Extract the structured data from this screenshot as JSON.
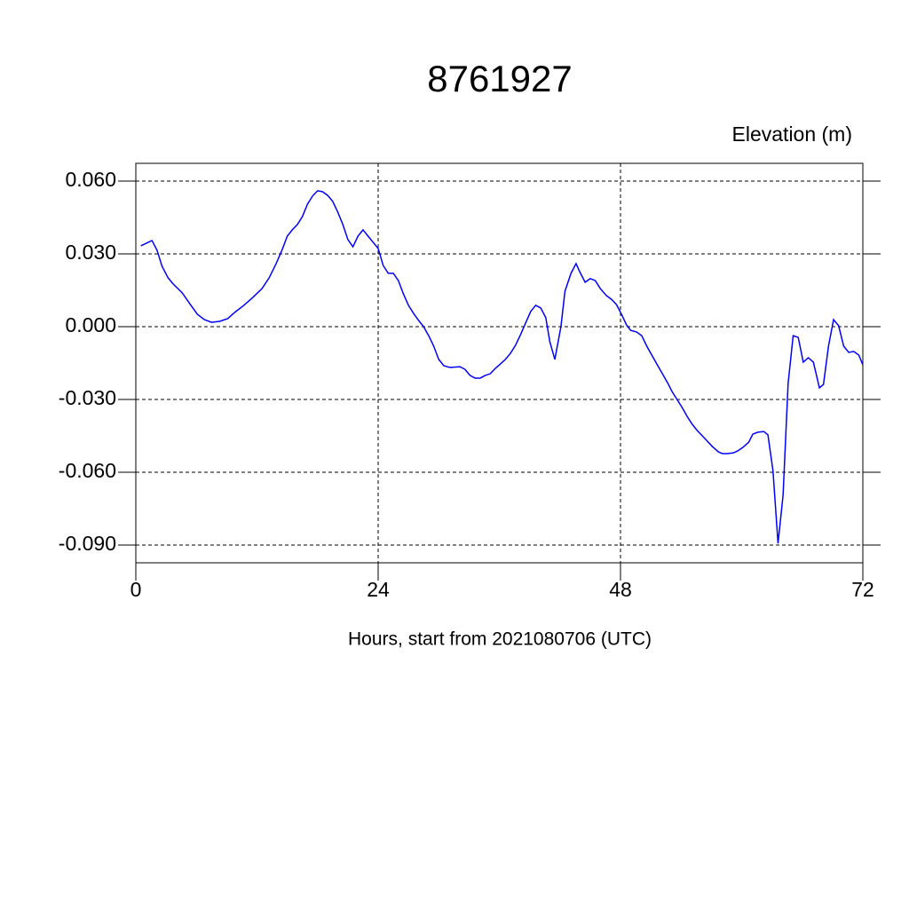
{
  "chart_data": {
    "type": "line",
    "title": "8761927",
    "ylabel": "Elevation (m)",
    "xlabel": "Hours, start from 2021080706 (UTC)",
    "xlim": [
      0,
      72
    ],
    "xticks": [
      0,
      24,
      48,
      72
    ],
    "ylim": [
      -0.0973,
      0.0673
    ],
    "yticks": [
      {
        "value": -0.09,
        "label": "-0.090"
      },
      {
        "value": -0.06,
        "label": "-0.060"
      },
      {
        "value": -0.03,
        "label": "-0.030"
      },
      {
        "value": 0,
        "label": "0.000"
      },
      {
        "value": 0.03,
        "label": "0.030"
      },
      {
        "value": 0.06,
        "label": "0.060"
      }
    ],
    "grid": true,
    "series": [
      {
        "color": "#0000ff",
        "x": [
          0.5,
          1.6,
          2.1,
          2.6,
          3.2,
          3.7,
          4.6,
          5.4,
          6.1,
          6.8,
          7.5,
          8.3,
          9.1,
          9.8,
          10.7,
          11.6,
          12.5,
          13.2,
          13.9,
          14.5,
          15.0,
          15.5,
          16.0,
          16.5,
          17.0,
          17.5,
          18.0,
          18.5,
          19.0,
          19.5,
          20.0,
          20.5,
          21.0,
          21.5,
          22.0,
          22.5,
          23.0,
          23.5,
          24.0,
          24.5,
          25.0,
          25.5,
          26.0,
          26.5,
          27.0,
          27.5,
          28.0,
          28.5,
          29.0,
          29.5,
          30.0,
          30.5,
          31.1,
          32.1,
          32.6,
          33.1,
          33.6,
          34.1,
          34.6,
          35.1,
          35.6,
          36.1,
          36.6,
          37.1,
          37.6,
          38.1,
          38.6,
          39.1,
          39.6,
          40.1,
          40.6,
          41.0,
          41.5,
          42.1,
          42.5,
          43.1,
          43.6,
          44.0,
          44.5,
          45.0,
          45.5,
          46.0,
          46.6,
          47.1,
          47.6,
          48.1,
          48.6,
          49.0,
          49.6,
          50.1,
          50.6,
          51.1,
          51.6,
          52.1,
          52.7,
          53.1,
          53.6,
          54.1,
          54.6,
          55.1,
          55.6,
          56.2,
          56.6,
          57.1,
          57.7,
          58.1,
          58.6,
          59.2,
          59.6,
          60.1,
          60.7,
          61.1,
          61.6,
          62.2,
          62.6,
          63.1,
          63.6,
          64.1,
          64.6,
          65.1,
          65.6,
          66.1,
          66.6,
          67.1,
          67.7,
          68.1,
          68.6,
          69.1,
          69.6,
          70.1,
          70.6,
          71.1,
          71.6,
          72.0
        ],
        "values": [
          0.0333,
          0.0355,
          0.0315,
          0.0249,
          0.0201,
          0.0176,
          0.0139,
          0.0091,
          0.0051,
          0.0029,
          0.0018,
          0.0022,
          0.0033,
          0.0059,
          0.0088,
          0.0121,
          0.0157,
          0.0201,
          0.026,
          0.0318,
          0.0373,
          0.0399,
          0.0421,
          0.0454,
          0.0505,
          0.0538,
          0.056,
          0.0556,
          0.0541,
          0.0516,
          0.0472,
          0.0421,
          0.0359,
          0.0329,
          0.0373,
          0.0399,
          0.0373,
          0.0348,
          0.0322,
          0.0252,
          0.022,
          0.022,
          0.019,
          0.0135,
          0.0088,
          0.0055,
          0.0026,
          0.0,
          -0.0037,
          -0.008,
          -0.0135,
          -0.0161,
          -0.0168,
          -0.0165,
          -0.0176,
          -0.0201,
          -0.0212,
          -0.0212,
          -0.0201,
          -0.0194,
          -0.0172,
          -0.0154,
          -0.0135,
          -0.011,
          -0.0077,
          -0.0033,
          0.0015,
          0.0062,
          0.0088,
          0.0077,
          0.0037,
          -0.0062,
          -0.0135,
          0.0,
          0.0146,
          0.022,
          0.026,
          0.0223,
          0.0183,
          0.0198,
          0.019,
          0.0157,
          0.0128,
          0.0113,
          0.0091,
          0.0051,
          0.0007,
          -0.0015,
          -0.0022,
          -0.0037,
          -0.008,
          -0.0117,
          -0.0154,
          -0.019,
          -0.0234,
          -0.0267,
          -0.03,
          -0.0333,
          -0.037,
          -0.0402,
          -0.0428,
          -0.0454,
          -0.0472,
          -0.0494,
          -0.0516,
          -0.0523,
          -0.0523,
          -0.052,
          -0.0512,
          -0.0498,
          -0.0476,
          -0.0443,
          -0.0435,
          -0.0432,
          -0.0446,
          -0.0593,
          -0.0893,
          -0.0695,
          -0.0234,
          -0.0037,
          -0.0044,
          -0.0146,
          -0.0128,
          -0.0146,
          -0.0252,
          -0.0238,
          -0.008,
          0.0029,
          0.0004,
          -0.008,
          -0.0106,
          -0.0102,
          -0.0117,
          -0.0157
        ]
      }
    ]
  }
}
